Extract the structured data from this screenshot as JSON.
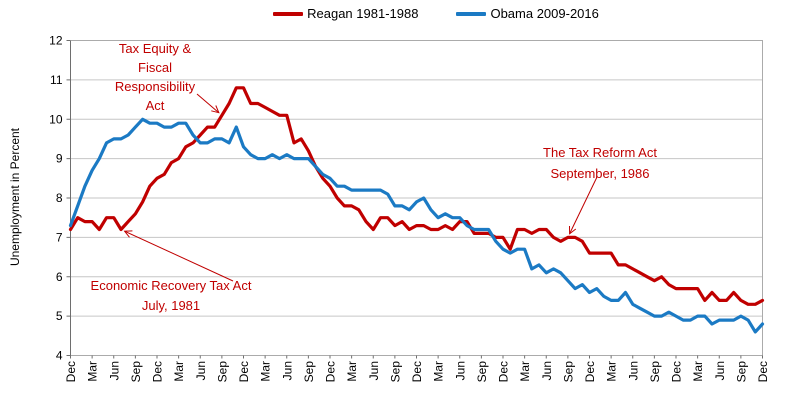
{
  "legend": [
    {
      "label": "Reagan 1981-1988",
      "color": "#C00000"
    },
    {
      "label": "Obama 2009-2016",
      "color": "#1B7AC4"
    }
  ],
  "chart_data": {
    "type": "line",
    "title": "",
    "ylabel": "Unemployment in Percent",
    "xlabel": "",
    "ylim": [
      4,
      12
    ],
    "y_ticks": [
      4,
      5,
      6,
      7,
      8,
      9,
      10,
      11,
      12
    ],
    "grid": "horizontal",
    "legend_position": "top-center",
    "x_tick_every_n_points": 3,
    "x_tick_labels": [
      "Dec",
      "Mar",
      "Jun",
      "Sep",
      "Dec",
      "Mar",
      "Jun",
      "Sep",
      "Dec",
      "Mar",
      "Jun",
      "Sep",
      "Dec",
      "Mar",
      "Jun",
      "Sep",
      "Dec",
      "Mar",
      "Jun",
      "Sep",
      "Dec",
      "Mar",
      "Jun",
      "Sep",
      "Dec",
      "Mar",
      "Jun",
      "Sep",
      "Dec",
      "Mar",
      "Jun",
      "Sep",
      "Dec"
    ],
    "series": [
      {
        "name": "Reagan 1981-1988",
        "color": "#C00000",
        "values": [
          7.2,
          7.5,
          7.4,
          7.4,
          7.2,
          7.5,
          7.5,
          7.2,
          7.4,
          7.6,
          7.9,
          8.3,
          8.5,
          8.6,
          8.9,
          9.0,
          9.3,
          9.4,
          9.6,
          9.8,
          9.8,
          10.1,
          10.4,
          10.8,
          10.8,
          10.4,
          10.4,
          10.3,
          10.2,
          10.1,
          10.1,
          9.4,
          9.5,
          9.2,
          8.8,
          8.5,
          8.3,
          8.0,
          7.8,
          7.8,
          7.7,
          7.4,
          7.2,
          7.5,
          7.5,
          7.3,
          7.4,
          7.2,
          7.3,
          7.3,
          7.2,
          7.2,
          7.3,
          7.2,
          7.4,
          7.4,
          7.1,
          7.1,
          7.1,
          7.0,
          7.0,
          6.7,
          7.2,
          7.2,
          7.1,
          7.2,
          7.2,
          7.0,
          6.9,
          7.0,
          7.0,
          6.9,
          6.6,
          6.6,
          6.6,
          6.6,
          6.3,
          6.3,
          6.2,
          6.1,
          6.0,
          5.9,
          6.0,
          5.8,
          5.7,
          5.7,
          5.7,
          5.7,
          5.4,
          5.6,
          5.4,
          5.4,
          5.6,
          5.4,
          5.3,
          5.3,
          5.4
        ]
      },
      {
        "name": "Obama 2009-2016",
        "color": "#1B7AC4",
        "values": [
          7.3,
          7.8,
          8.3,
          8.7,
          9.0,
          9.4,
          9.5,
          9.5,
          9.6,
          9.8,
          10.0,
          9.9,
          9.9,
          9.8,
          9.8,
          9.9,
          9.9,
          9.6,
          9.4,
          9.4,
          9.5,
          9.5,
          9.4,
          9.8,
          9.3,
          9.1,
          9.0,
          9.0,
          9.1,
          9.0,
          9.1,
          9.0,
          9.0,
          9.0,
          8.8,
          8.6,
          8.5,
          8.3,
          8.3,
          8.2,
          8.2,
          8.2,
          8.2,
          8.2,
          8.1,
          7.8,
          7.8,
          7.7,
          7.9,
          8.0,
          7.7,
          7.5,
          7.6,
          7.5,
          7.5,
          7.3,
          7.2,
          7.2,
          7.2,
          6.9,
          6.7,
          6.6,
          6.7,
          6.7,
          6.2,
          6.3,
          6.1,
          6.2,
          6.1,
          5.9,
          5.7,
          5.8,
          5.6,
          5.7,
          5.5,
          5.4,
          5.4,
          5.6,
          5.3,
          5.2,
          5.1,
          5.0,
          5.0,
          5.1,
          5.0,
          4.9,
          4.9,
          5.0,
          5.0,
          4.8,
          4.9,
          4.9,
          4.9,
          5.0,
          4.9,
          4.6,
          4.8
        ]
      }
    ],
    "annotations": [
      {
        "id": "tefra",
        "lines": [
          "Tax Equity &",
          "Fiscal",
          "Responsibility",
          "Act"
        ],
        "target": {
          "series": 0,
          "index": 21,
          "value": 10.1
        }
      },
      {
        "id": "erta",
        "lines": [
          "Economic Recovery Tax Act",
          "July, 1981"
        ],
        "target": {
          "series": 0,
          "index": 7,
          "value": 7.2
        }
      },
      {
        "id": "tra",
        "lines": [
          "The Tax Reform Act",
          "September, 1986"
        ],
        "target": {
          "series": 0,
          "index": 69,
          "value": 7.0
        }
      }
    ],
    "annotation_color": "#C00000"
  },
  "axes_style": {
    "gridline_color": "#C6C6C6",
    "border_color": "#ABABAB",
    "axis_line_color": "#6E6E6E"
  }
}
